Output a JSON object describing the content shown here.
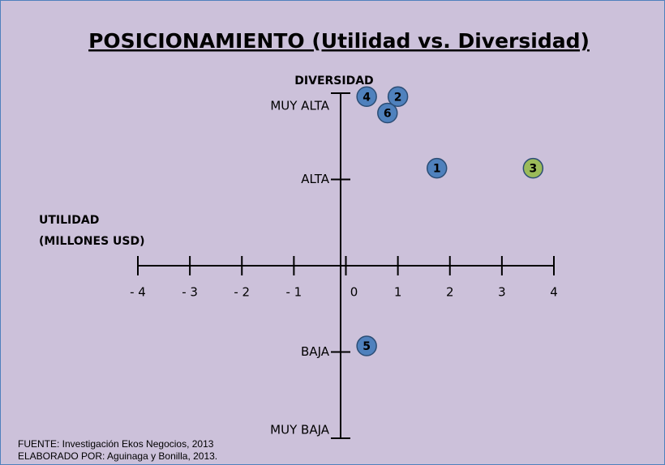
{
  "chart_data": {
    "type": "scatter",
    "title": "POSICIONAMIENTO (Utilidad vs. Diversidad)",
    "x_label": [
      "UTILIDAD",
      "(MILLONES USD)"
    ],
    "y_label": "DIVERSIDAD",
    "xlim": [
      -4,
      4
    ],
    "xticks": [
      {
        "value": -4,
        "label": "- 4"
      },
      {
        "value": -3,
        "label": "- 3"
      },
      {
        "value": -2,
        "label": "- 2"
      },
      {
        "value": -1,
        "label": "- 1"
      },
      0,
      1,
      2,
      3,
      4
    ],
    "ylim": [
      -2,
      2
    ],
    "yticks": [
      {
        "value": -2,
        "label": "MUY BAJA"
      },
      {
        "value": -1,
        "label": "BAJA"
      },
      {
        "value": 1,
        "label": "ALTA"
      },
      {
        "value": 2,
        "label": "MUY ALTA"
      }
    ],
    "points": [
      {
        "label": "1",
        "x": 1.75,
        "y": 1.13,
        "color": "#4f81bd"
      },
      {
        "label": "2",
        "x": 1.0,
        "y": 1.96,
        "color": "#4f81bd"
      },
      {
        "label": "3",
        "x": 3.6,
        "y": 1.13,
        "color": "#9bbb59"
      },
      {
        "label": "4",
        "x": 0.4,
        "y": 1.96,
        "color": "#4f81bd"
      },
      {
        "label": "5",
        "x": 0.4,
        "y": -0.93,
        "color": "#4f81bd"
      },
      {
        "label": "6",
        "x": 0.8,
        "y": 1.77,
        "color": "#4f81bd"
      }
    ],
    "footnotes": [
      "FUENTE: Investigación Ekos Negocios, 2013",
      "ELABORADO POR: Aguinaga y Bonilla, 2013."
    ]
  }
}
